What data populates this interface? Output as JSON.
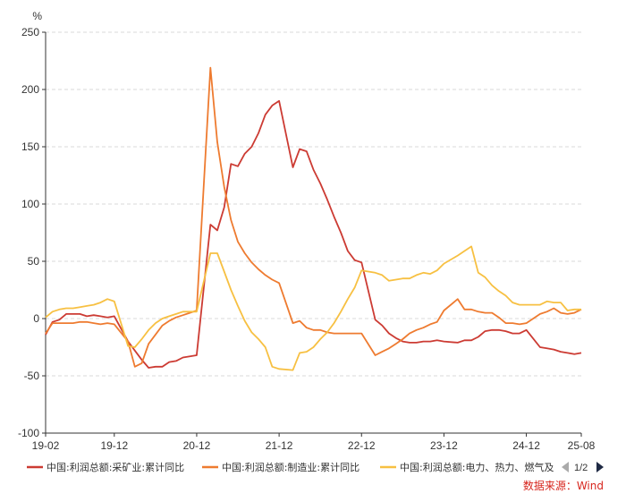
{
  "chart_data": {
    "type": "line",
    "unit": "%",
    "ylim": [
      -100,
      250
    ],
    "yticks": [
      -100,
      -50,
      0,
      50,
      100,
      150,
      200,
      250
    ],
    "xlim": [
      "2019-02",
      "2025-08"
    ],
    "xtick_labels": [
      "19-02",
      "19-12",
      "20-12",
      "21-12",
      "22-12",
      "23-12",
      "24-12",
      "25-08"
    ],
    "grid": "horizontal-dashed",
    "legend_position": "bottom",
    "source": "数据来源：Wind",
    "legend_pager": "1/2",
    "x": [
      "2019-02",
      "2019-03",
      "2019-04",
      "2019-05",
      "2019-06",
      "2019-07",
      "2019-08",
      "2019-09",
      "2019-10",
      "2019-11",
      "2019-12",
      "2020-02",
      "2020-03",
      "2020-04",
      "2020-05",
      "2020-06",
      "2020-07",
      "2020-08",
      "2020-09",
      "2020-10",
      "2020-11",
      "2020-12",
      "2021-02",
      "2021-03",
      "2021-04",
      "2021-05",
      "2021-06",
      "2021-07",
      "2021-08",
      "2021-09",
      "2021-10",
      "2021-11",
      "2021-12",
      "2022-02",
      "2022-03",
      "2022-04",
      "2022-05",
      "2022-06",
      "2022-07",
      "2022-08",
      "2022-09",
      "2022-10",
      "2022-11",
      "2022-12",
      "2023-02",
      "2023-03",
      "2023-04",
      "2023-05",
      "2023-06",
      "2023-07",
      "2023-08",
      "2023-09",
      "2023-10",
      "2023-11",
      "2023-12",
      "2024-02",
      "2024-03",
      "2024-04",
      "2024-05",
      "2024-06",
      "2024-07",
      "2024-08",
      "2024-09",
      "2024-10",
      "2024-11",
      "2024-12",
      "2025-02",
      "2025-03",
      "2025-04",
      "2025-05",
      "2025-06",
      "2025-07",
      "2025-08"
    ],
    "series": [
      {
        "name": "中国:利润总额:采矿业:累计同比",
        "color": "#cc3b33",
        "values": [
          -14,
          -3,
          -1,
          4,
          4,
          4,
          2,
          3,
          2,
          1,
          2,
          -20,
          -28,
          -36,
          -43,
          -42,
          -42,
          -38,
          -37,
          -34,
          -33,
          -32,
          82,
          77,
          97,
          135,
          133,
          144,
          150,
          162,
          178,
          186,
          190,
          132,
          148,
          146,
          130,
          118,
          104,
          89,
          75,
          59,
          51,
          49,
          -1,
          -6,
          -13,
          -17,
          -20,
          -21,
          -21,
          -20,
          -20,
          -19,
          -20,
          -21,
          -19,
          -19,
          -16,
          -11,
          -10,
          -10,
          -11,
          -13,
          -13,
          -10,
          -25,
          -26,
          -27,
          -29,
          -30,
          -31,
          -30
        ]
      },
      {
        "name": "中国:利润总额:制造业:累计同比",
        "color": "#ee7b30",
        "values": [
          -13,
          -4,
          -4,
          -4,
          -4,
          -3,
          -3,
          -4,
          -5,
          -4,
          -5,
          -20,
          -42,
          -39,
          -22,
          -14,
          -6,
          -2,
          1,
          3,
          5,
          7,
          219,
          154,
          115,
          86,
          67,
          57,
          49,
          43,
          38,
          34,
          31,
          -4,
          -2,
          -8,
          -10,
          -10,
          -12,
          -13,
          -13,
          -13,
          -13,
          -13,
          -32,
          -29,
          -26,
          -22,
          -18,
          -13,
          -10,
          -8,
          -5,
          -3,
          7,
          17,
          8,
          8,
          6,
          5,
          5,
          1,
          -4,
          -4,
          -5,
          -4,
          4,
          6,
          9,
          5,
          4,
          5,
          8
        ]
      },
      {
        "name": "中国:利润总额:电力、热力、燃气及水生产和供应业:累计同比",
        "color": "#f7c042",
        "values": [
          1,
          6,
          8,
          9,
          9,
          10,
          11,
          12,
          14,
          17,
          15,
          -24,
          -25,
          -18,
          -10,
          -4,
          0,
          2,
          4,
          6,
          6,
          6,
          57,
          57,
          41,
          25,
          11,
          -2,
          -12,
          -18,
          -25,
          -42,
          -44,
          -45,
          -30,
          -29,
          -25,
          -18,
          -12,
          -4,
          6,
          17,
          27,
          42,
          40,
          38,
          33,
          34,
          35,
          35,
          38,
          40,
          39,
          42,
          48,
          55,
          59,
          63,
          40,
          36,
          29,
          24,
          20,
          14,
          12,
          12,
          12,
          15,
          14,
          14,
          7,
          8,
          8
        ]
      }
    ]
  }
}
